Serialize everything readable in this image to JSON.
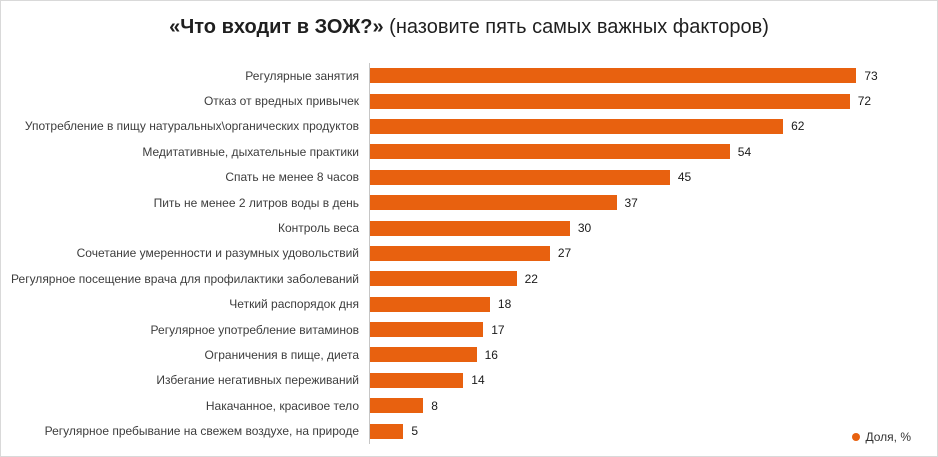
{
  "title": {
    "bold": "«Что входит в ЗОЖ?»",
    "normal": " (назовите пять самых важных факторов)"
  },
  "legend": {
    "label": "Доля, %"
  },
  "colors": {
    "bar": "#e8610f",
    "axis_line": "#c6c6c6",
    "text": "#3d3d3d"
  },
  "chart_data": {
    "type": "bar",
    "orientation": "horizontal",
    "title": "«Что входит в ЗОЖ?» (назовите пять самых важных факторов)",
    "xlabel": "",
    "ylabel": "",
    "xlim": [
      0,
      80
    ],
    "grid": false,
    "legend_entries": [
      "Доля, %"
    ],
    "legend_position": "bottom-right",
    "categories": [
      "Регулярные занятия",
      "Отказ от вредных привычек",
      "Употребление в пищу натуральных\\органических продуктов",
      "Медитативные, дыхательные практики",
      "Спать не менее 8 часов",
      "Пить не менее 2 литров воды в день",
      "Контроль веса",
      "Сочетание умеренности и разумных удовольствий",
      "Регулярное посещение врача для профилактики заболеваний",
      "Четкий распорядок дня",
      "Регулярное употребление витаминов",
      "Ограничения в пище, диета",
      "Избегание негативных переживаний",
      "Накачанное, красивое тело",
      "Регулярное пребывание на свежем воздухе, на природе"
    ],
    "values": [
      73,
      72,
      62,
      54,
      45,
      37,
      30,
      27,
      22,
      18,
      17,
      16,
      14,
      8,
      5
    ]
  }
}
